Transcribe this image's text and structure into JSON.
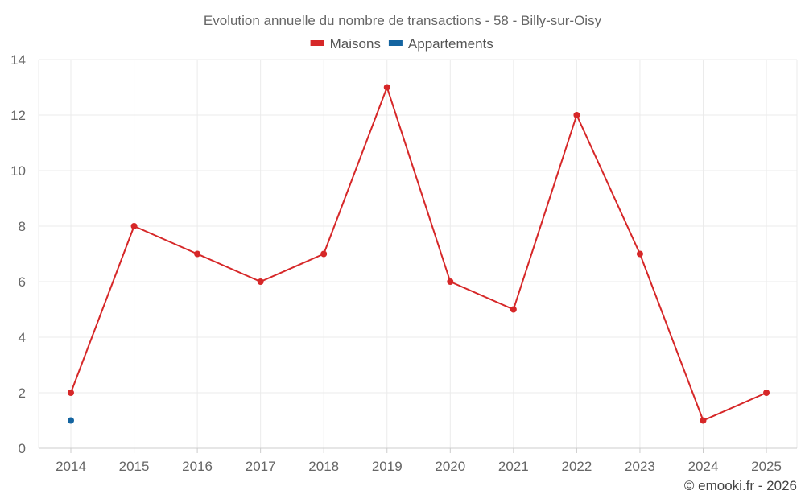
{
  "chart_data": {
    "type": "line",
    "title": "Evolution annuelle du nombre de transactions - 58 - Billy-sur-Oisy",
    "categories": [
      "2014",
      "2015",
      "2016",
      "2017",
      "2018",
      "2019",
      "2020",
      "2021",
      "2022",
      "2023",
      "2024",
      "2025"
    ],
    "ylim": [
      0,
      14
    ],
    "yticks": [
      0,
      2,
      4,
      6,
      8,
      10,
      12,
      14
    ],
    "grid": true,
    "legend_position": "top-center",
    "series": [
      {
        "name": "Maisons",
        "color": "#d62728",
        "values": [
          2,
          8,
          7,
          6,
          7,
          13,
          6,
          5,
          12,
          7,
          1,
          2
        ]
      },
      {
        "name": "Appartements",
        "color": "#1464a0",
        "values": [
          1,
          null,
          null,
          null,
          null,
          null,
          null,
          null,
          null,
          null,
          null,
          null
        ]
      }
    ]
  },
  "credit": "© emooki.fr - 2026"
}
